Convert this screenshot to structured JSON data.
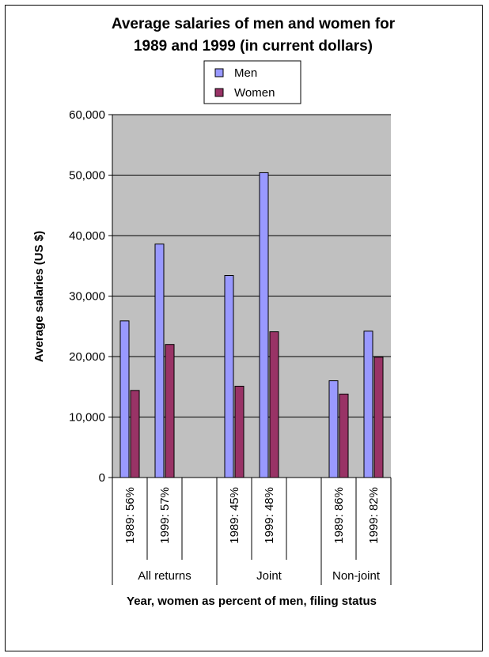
{
  "chart_data": {
    "type": "bar",
    "title": "Average salaries of men and women for 1989 and 1999 (in current dollars)",
    "title_lines": [
      "Average salaries of men and women for",
      "1989 and 1999 (in current dollars)"
    ],
    "xlabel": "Year, women as percent of men, filing status",
    "ylabel": "Average salaries (US $)",
    "ylim": [
      0,
      60000
    ],
    "yticks": [
      0,
      10000,
      20000,
      30000,
      40000,
      50000,
      60000
    ],
    "ytick_labels": [
      "0",
      "10,000",
      "20,000",
      "30,000",
      "40,000",
      "50,000",
      "60,000"
    ],
    "groups": [
      "All returns",
      "Joint",
      "Non-joint"
    ],
    "categories": [
      "1989: 56%",
      "1999: 57%",
      "",
      "1989: 45%",
      "1999: 48%",
      "",
      "1989: 86%",
      "1999: 82%"
    ],
    "series": [
      {
        "name": "Men",
        "color": "#9999ff",
        "values": [
          25900,
          38600,
          null,
          33400,
          50400,
          null,
          16000,
          24200
        ]
      },
      {
        "name": "Women",
        "color": "#993366",
        "values": [
          14400,
          22000,
          null,
          15100,
          24100,
          null,
          13800,
          19900
        ]
      }
    ],
    "legend_position": "top-center",
    "grid": true,
    "plot_background": "#c0c0c0"
  }
}
